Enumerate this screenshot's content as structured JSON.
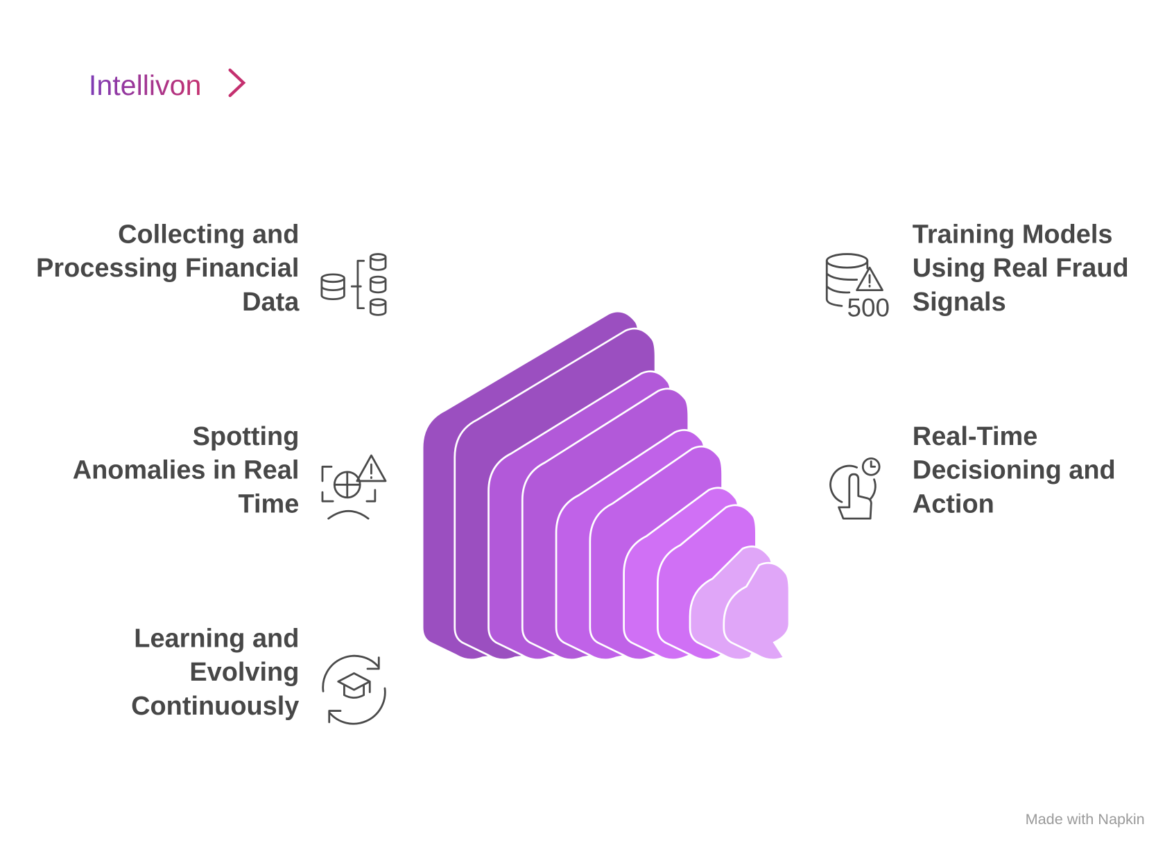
{
  "logo": "Intellivon",
  "left_items": [
    {
      "lines": [
        "Collecting and",
        "Processing Financial",
        "Data"
      ]
    },
    {
      "lines": [
        "Spotting",
        "Anomalies in Real",
        "Time"
      ]
    },
    {
      "lines": [
        "Learning and",
        "Evolving",
        "Continuously"
      ]
    }
  ],
  "right_items": [
    {
      "lines": [
        "Training Models",
        "Using Real Fraud",
        "Signals"
      ]
    },
    {
      "lines": [
        "Real-Time",
        "Decisioning and",
        "Action"
      ]
    }
  ],
  "icon_text": "500",
  "footer": "Made with Napkin"
}
